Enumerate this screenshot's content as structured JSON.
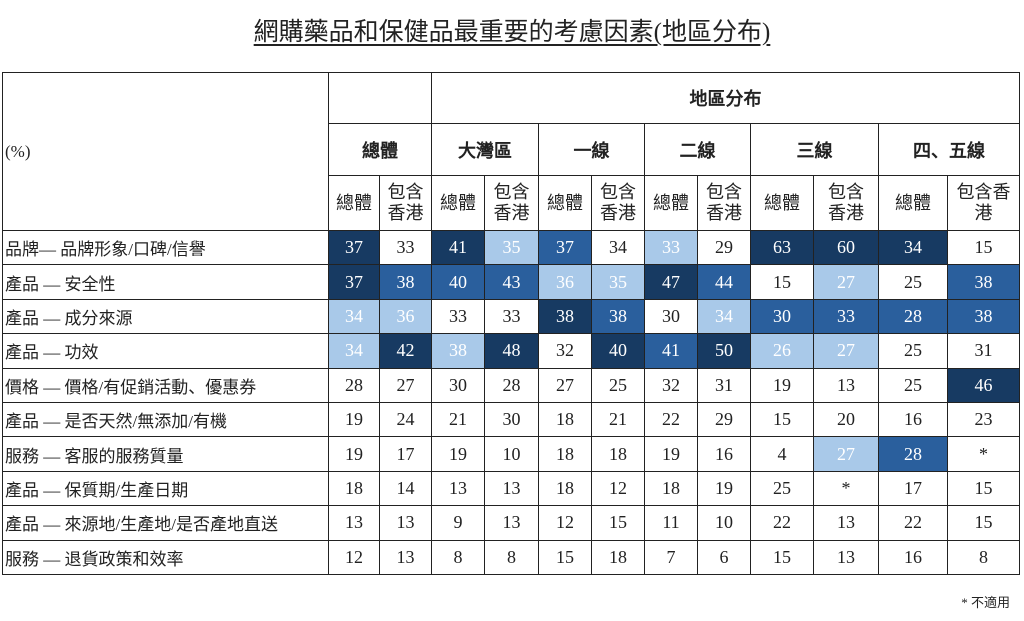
{
  "title": "網購藥品和保健品最重要的考慮因素(地區分布)",
  "unit_label": "(%)",
  "region_header": "地區分布",
  "footnote": "* 不適用",
  "colors": {
    "light": "#a9c9e9",
    "mid": "#2a5f9d",
    "dark": "#173a62"
  },
  "chart_data": {
    "type": "table",
    "groups": [
      "總體",
      "大灣區",
      "一線",
      "二線",
      "三線",
      "四、五線"
    ],
    "subcolumns": [
      "總體",
      "包含香港"
    ],
    "rows": [
      {
        "label": "品牌— 品牌形象/口碑/信譽",
        "values": [
          "37",
          "33",
          "41",
          "35",
          "37",
          "34",
          "33",
          "29",
          "63",
          "60",
          "34",
          "15"
        ],
        "shade": [
          3,
          0,
          3,
          1,
          2,
          0,
          1,
          0,
          3,
          3,
          3,
          0
        ]
      },
      {
        "label": "產品 — 安全性",
        "values": [
          "37",
          "38",
          "40",
          "43",
          "36",
          "35",
          "47",
          "44",
          "15",
          "27",
          "25",
          "38"
        ],
        "shade": [
          3,
          2,
          2,
          2,
          1,
          1,
          3,
          2,
          0,
          1,
          0,
          2
        ]
      },
      {
        "label": "產品 — 成分來源",
        "values": [
          "34",
          "36",
          "33",
          "33",
          "38",
          "38",
          "30",
          "34",
          "30",
          "33",
          "28",
          "38"
        ],
        "shade": [
          1,
          1,
          0,
          0,
          3,
          2,
          0,
          1,
          2,
          2,
          2,
          2
        ]
      },
      {
        "label": "產品 — 功效",
        "values": [
          "34",
          "42",
          "38",
          "48",
          "32",
          "40",
          "41",
          "50",
          "26",
          "27",
          "25",
          "31"
        ],
        "shade": [
          1,
          3,
          1,
          3,
          0,
          3,
          2,
          3,
          1,
          1,
          0,
          0
        ]
      },
      {
        "label": "價格 — 價格/有促銷活動、優惠券",
        "values": [
          "28",
          "27",
          "30",
          "28",
          "27",
          "25",
          "32",
          "31",
          "19",
          "13",
          "25",
          "46"
        ],
        "shade": [
          0,
          0,
          0,
          0,
          0,
          0,
          0,
          0,
          0,
          0,
          0,
          3
        ]
      },
      {
        "label": "產品 — 是否天然/無添加/有機",
        "values": [
          "19",
          "24",
          "21",
          "30",
          "18",
          "21",
          "22",
          "29",
          "15",
          "20",
          "16",
          "23"
        ],
        "shade": [
          0,
          0,
          0,
          0,
          0,
          0,
          0,
          0,
          0,
          0,
          0,
          0
        ]
      },
      {
        "label": "服務 — 客服的服務質量",
        "values": [
          "19",
          "17",
          "19",
          "10",
          "18",
          "18",
          "19",
          "16",
          "4",
          "27",
          "28",
          "*"
        ],
        "shade": [
          0,
          0,
          0,
          0,
          0,
          0,
          0,
          0,
          0,
          1,
          2,
          0
        ]
      },
      {
        "label": "產品 — 保質期/生產日期",
        "values": [
          "18",
          "14",
          "13",
          "13",
          "18",
          "12",
          "18",
          "19",
          "25",
          "*",
          "17",
          "15"
        ],
        "shade": [
          0,
          0,
          0,
          0,
          0,
          0,
          0,
          0,
          0,
          0,
          0,
          0
        ]
      },
      {
        "label": "產品 — 來源地/生產地/是否產地直送",
        "values": [
          "13",
          "13",
          "9",
          "13",
          "12",
          "15",
          "11",
          "10",
          "22",
          "13",
          "22",
          "15"
        ],
        "shade": [
          0,
          0,
          0,
          0,
          0,
          0,
          0,
          0,
          0,
          0,
          0,
          0
        ]
      },
      {
        "label": "服務 — 退貨政策和效率",
        "values": [
          "12",
          "13",
          "8",
          "8",
          "15",
          "18",
          "7",
          "6",
          "15",
          "13",
          "16",
          "8"
        ],
        "shade": [
          0,
          0,
          0,
          0,
          0,
          0,
          0,
          0,
          0,
          0,
          0,
          0
        ]
      }
    ]
  }
}
